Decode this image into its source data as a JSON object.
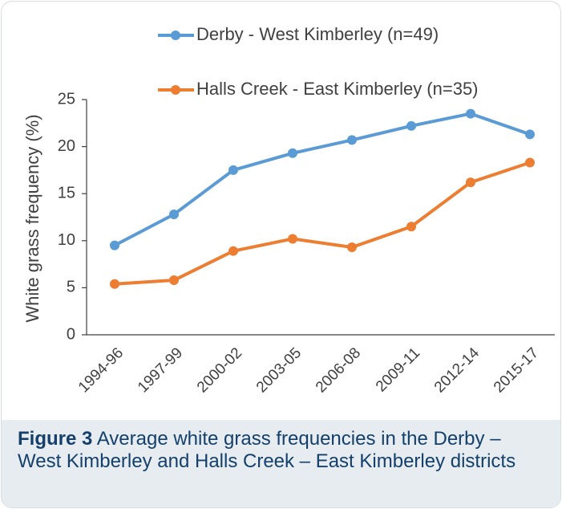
{
  "chart_data": {
    "type": "line",
    "ylabel": "White grass frequency (%)",
    "categories": [
      "1994-96",
      "1997-99",
      "2000-02",
      "2003-05",
      "2006-08",
      "2009-11",
      "2012-14",
      "2015-17"
    ],
    "series": [
      {
        "name": "Derby - West Kimberley (n=49)",
        "color": "#5b9bd5",
        "values": [
          9.5,
          12.8,
          17.5,
          19.3,
          20.7,
          22.2,
          23.5,
          21.3
        ]
      },
      {
        "name": "Halls Creek - East Kimberley (n=35)",
        "color": "#ed7d31",
        "values": [
          5.4,
          5.8,
          8.9,
          10.2,
          9.3,
          11.5,
          16.2,
          18.3
        ]
      }
    ],
    "ylim": [
      0,
      25
    ],
    "yticks": [
      0,
      5,
      10,
      15,
      20,
      25
    ],
    "grid": false
  },
  "caption": {
    "label": "Figure 3",
    "text": "Average white grass frequencies in the Derby – West Kimberley and Halls Creek – East Kimberley districts"
  }
}
